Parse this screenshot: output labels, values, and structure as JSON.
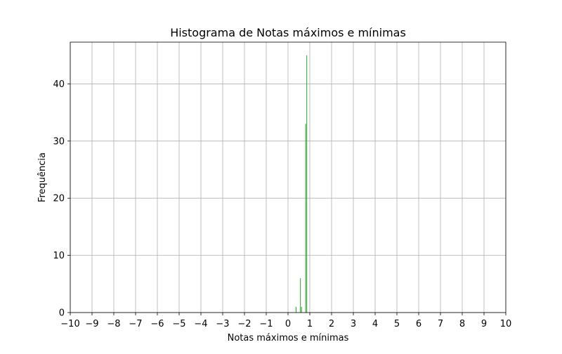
{
  "chart_data": {
    "type": "bar",
    "title": "Histograma de Notas máximos e mínimas",
    "xlabel": "Notas máximos e mínimas",
    "ylabel": "Frequência",
    "xlim": [
      -10,
      10
    ],
    "ylim": [
      0,
      47.3
    ],
    "x_ticks": [
      -10,
      -9,
      -8,
      -7,
      -6,
      -5,
      -4,
      -3,
      -2,
      -1,
      0,
      1,
      2,
      3,
      4,
      5,
      6,
      7,
      8,
      9,
      10
    ],
    "x_tick_labels": [
      "−10",
      "−9",
      "−8",
      "−7",
      "−6",
      "−5",
      "−4",
      "−3",
      "−2",
      "−1",
      "0",
      "1",
      "2",
      "3",
      "4",
      "5",
      "6",
      "7",
      "8",
      "9",
      "10"
    ],
    "y_ticks": [
      0,
      10,
      20,
      30,
      40
    ],
    "y_tick_labels": [
      "0",
      "10",
      "20",
      "30",
      "40"
    ],
    "grid": true,
    "bar_width": 0.03,
    "color": "#2ca02c",
    "bins": [
      {
        "x": 0.37,
        "value": 1
      },
      {
        "x": 0.57,
        "value": 6
      },
      {
        "x": 0.62,
        "value": 1
      },
      {
        "x": 0.81,
        "value": 33
      },
      {
        "x": 0.86,
        "value": 45
      }
    ]
  }
}
